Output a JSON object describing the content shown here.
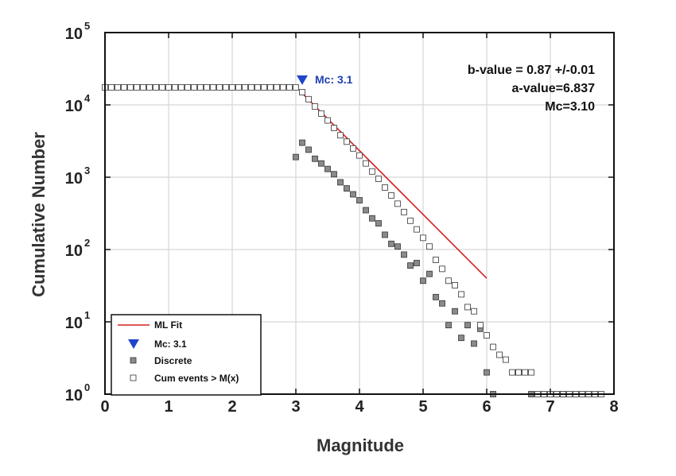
{
  "chart_data": {
    "type": "scatter",
    "xlabel": "Magnitude",
    "ylabel": "Cumulative Number",
    "xlim": [
      0,
      8
    ],
    "ylim_log10": [
      0,
      5
    ],
    "yscale": "log",
    "grid": true,
    "x_ticks": [
      "0",
      "1",
      "2",
      "3",
      "4",
      "5",
      "6",
      "7",
      "8"
    ],
    "y_ticks": [
      {
        "base": "10",
        "exp": "0"
      },
      {
        "base": "10",
        "exp": "1"
      },
      {
        "base": "10",
        "exp": "2"
      },
      {
        "base": "10",
        "exp": "3"
      },
      {
        "base": "10",
        "exp": "4"
      },
      {
        "base": "10",
        "exp": "5"
      }
    ],
    "annotations": {
      "b_value": "b-value = 0.87 +/-0.01",
      "a_value": "a-value=6.837",
      "mc_value": "Mc=3.10",
      "mc_marker": "Mc: 3.1"
    },
    "legend_position": "bottom-left",
    "series": [
      {
        "name": "ML Fit",
        "kind": "line",
        "color": "#d42020",
        "x": [
          3.1,
          6.0
        ],
        "y": [
          14500,
          40
        ]
      },
      {
        "name": "Mc: 3.1",
        "kind": "marker",
        "marker": "triangle-down",
        "color": "#1f45c8",
        "x": [
          3.1
        ],
        "y": [
          22000
        ]
      },
      {
        "name": "Discrete",
        "kind": "scatter",
        "marker": "square-filled",
        "color": "#8a8a8a",
        "x": [
          3.0,
          3.1,
          3.2,
          3.3,
          3.4,
          3.5,
          3.6,
          3.7,
          3.8,
          3.9,
          4.0,
          4.1,
          4.2,
          4.3,
          4.4,
          4.5,
          4.6,
          4.7,
          4.8,
          4.9,
          5.0,
          5.1,
          5.2,
          5.3,
          5.4,
          5.5,
          5.6,
          5.7,
          5.8,
          5.9,
          6.0,
          6.1,
          6.5,
          6.7,
          7.2
        ],
        "y": [
          1900,
          3000,
          2400,
          1800,
          1550,
          1300,
          1100,
          850,
          700,
          580,
          480,
          350,
          270,
          230,
          160,
          120,
          110,
          85,
          60,
          65,
          37,
          46,
          22,
          18,
          9,
          14,
          6,
          9,
          5,
          8,
          2,
          1,
          2,
          1,
          1
        ]
      },
      {
        "name": "Cum events > M(x)",
        "kind": "scatter",
        "marker": "square-open",
        "color": "#555555",
        "x": [
          0.0,
          0.1,
          0.2,
          0.3,
          0.4,
          0.5,
          0.6,
          0.7,
          0.8,
          0.9,
          1.0,
          1.1,
          1.2,
          1.3,
          1.4,
          1.5,
          1.6,
          1.7,
          1.8,
          1.9,
          2.0,
          2.1,
          2.2,
          2.3,
          2.4,
          2.5,
          2.6,
          2.7,
          2.8,
          2.9,
          3.0,
          3.1,
          3.2,
          3.3,
          3.4,
          3.5,
          3.6,
          3.7,
          3.8,
          3.9,
          4.0,
          4.1,
          4.2,
          4.3,
          4.4,
          4.5,
          4.6,
          4.7,
          4.8,
          4.9,
          5.0,
          5.1,
          5.2,
          5.3,
          5.4,
          5.5,
          5.6,
          5.7,
          5.8,
          5.9,
          6.0,
          6.1,
          6.2,
          6.3,
          6.4,
          6.5,
          6.6,
          6.7,
          6.8,
          6.9,
          7.0,
          7.1,
          7.2,
          7.3,
          7.4,
          7.5,
          7.6,
          7.7,
          7.8
        ],
        "y": [
          17500,
          17500,
          17500,
          17500,
          17500,
          17500,
          17500,
          17500,
          17500,
          17500,
          17500,
          17500,
          17500,
          17500,
          17500,
          17500,
          17500,
          17500,
          17500,
          17500,
          17500,
          17500,
          17500,
          17500,
          17500,
          17500,
          17500,
          17500,
          17500,
          17500,
          17500,
          15000,
          12000,
          9500,
          7600,
          6100,
          4800,
          3800,
          3100,
          2500,
          2000,
          1550,
          1200,
          950,
          720,
          560,
          430,
          330,
          250,
          190,
          145,
          110,
          72,
          54,
          37,
          32,
          24,
          16,
          14,
          9,
          6.5,
          4.5,
          3.5,
          3.0,
          2.0,
          2.0,
          2.0,
          2.0,
          1.0,
          1.0,
          1.0,
          1.0,
          1.0,
          1.0,
          1.0,
          1.0,
          1.0,
          1.0,
          1.0
        ]
      }
    ]
  }
}
